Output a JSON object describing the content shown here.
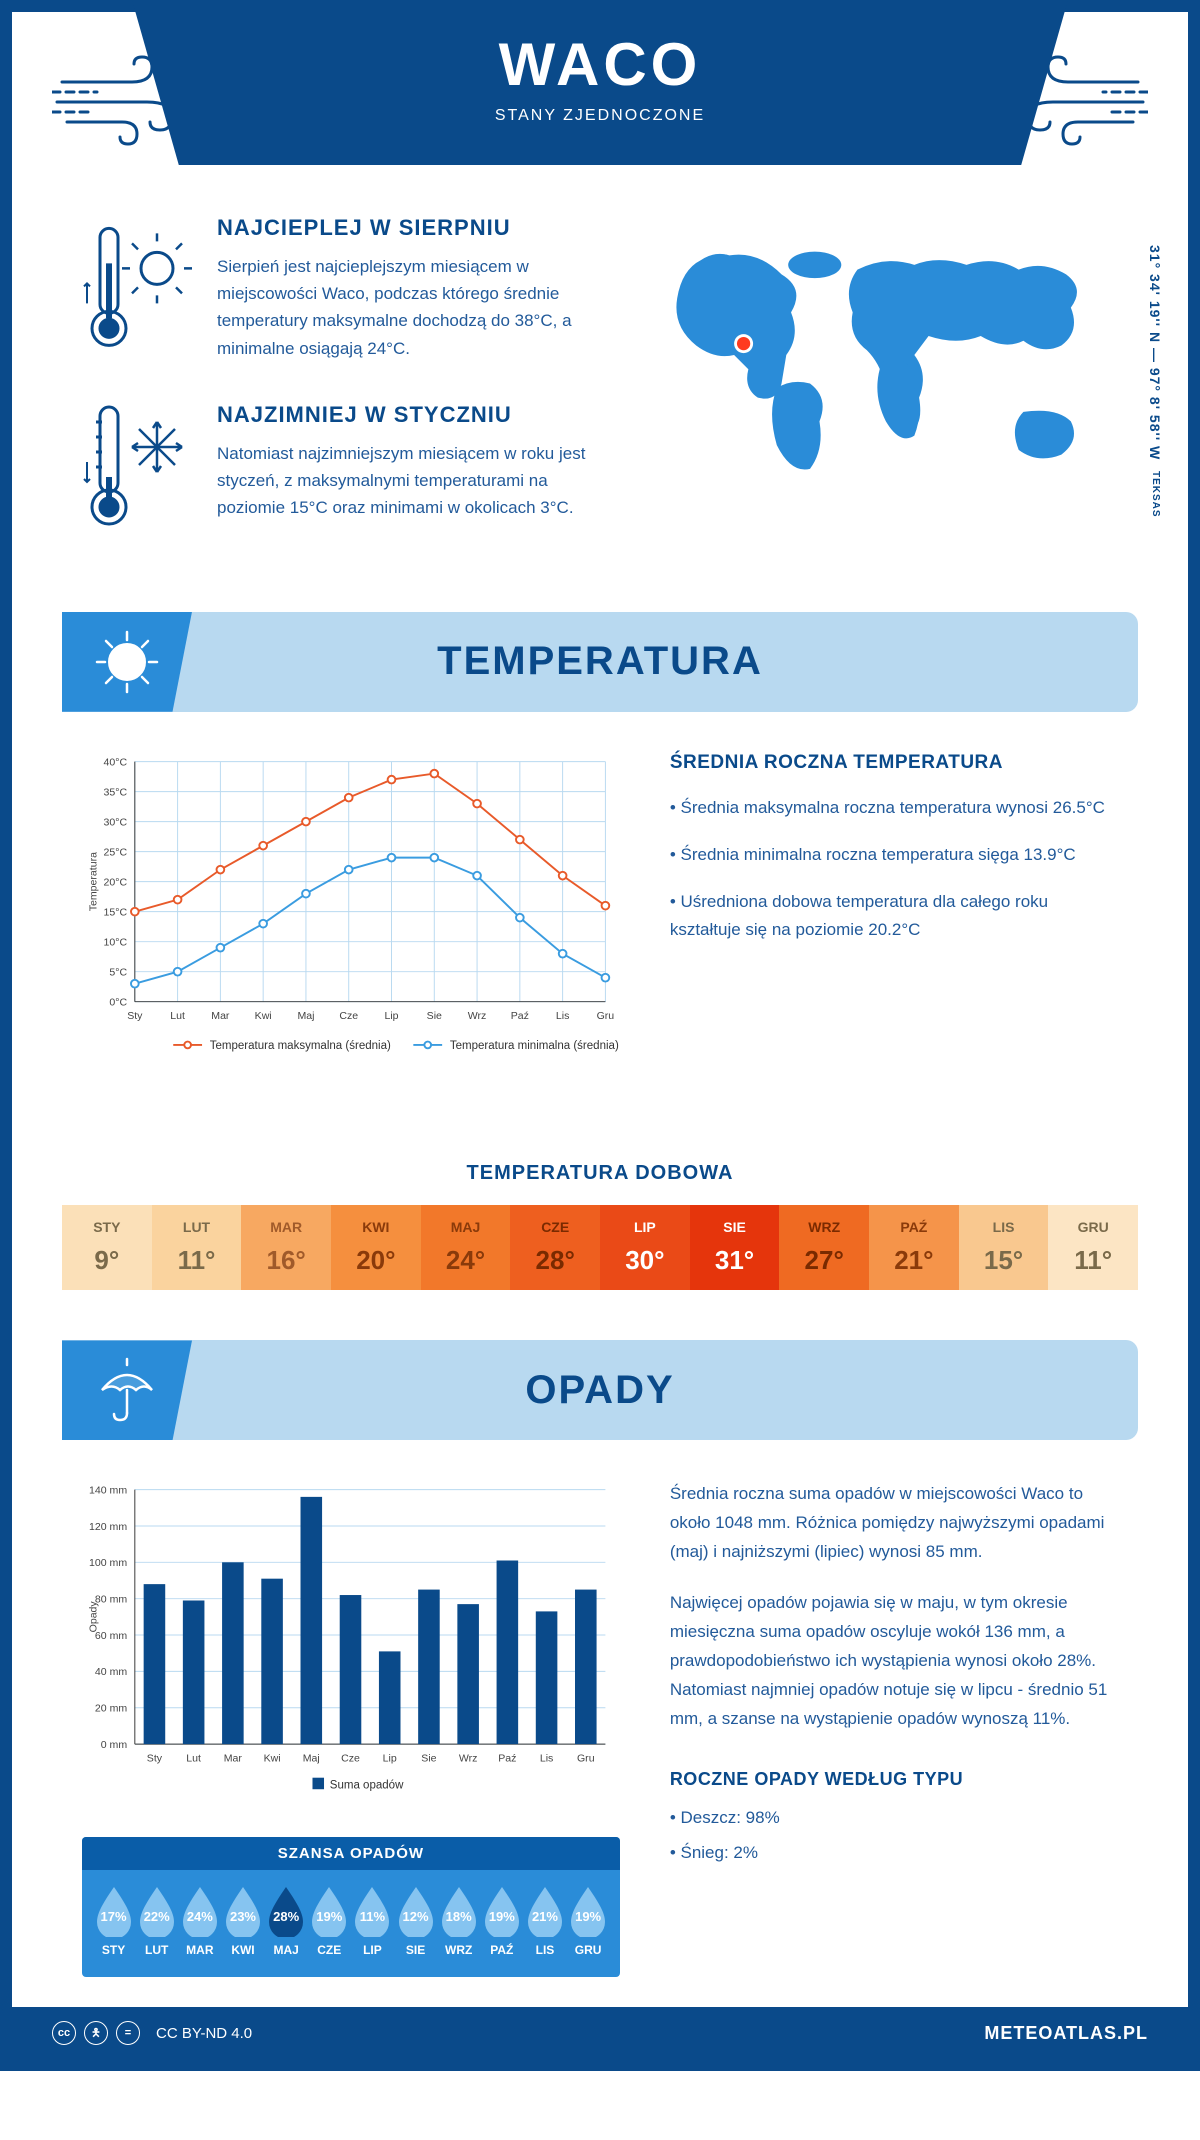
{
  "header": {
    "city": "WACO",
    "country": "STANY ZJEDNOCZONE"
  },
  "coords": {
    "main": "31° 34' 19'' N — 97° 8' 58'' W",
    "region": "TEKSAS"
  },
  "hottest": {
    "title": "NAJCIEPLEJ W SIERPNIU",
    "text": "Sierpień jest najcieplejszym miesiącem w miejscowości Waco, podczas którego średnie temperatury maksymalne dochodzą do 38°C, a minimalne osiągają 24°C."
  },
  "coldest": {
    "title": "NAJZIMNIEJ W STYCZNIU",
    "text": "Natomiast najzimniejszym miesiącem w roku jest styczeń, z maksymalnymi temperaturami na poziomie 15°C oraz minimami w okolicach 3°C."
  },
  "temp_section_title": "TEMPERATURA",
  "temp_chart": {
    "type": "line",
    "months": [
      "Sty",
      "Lut",
      "Mar",
      "Kwi",
      "Maj",
      "Cze",
      "Lip",
      "Sie",
      "Wrz",
      "Paź",
      "Lis",
      "Gru"
    ],
    "series_max": {
      "label": "Temperatura maksymalna (średnia)",
      "color": "#e85a2a",
      "values": [
        15,
        17,
        22,
        26,
        30,
        34,
        37,
        38,
        33,
        27,
        21,
        16
      ]
    },
    "series_min": {
      "label": "Temperatura minimalna (średnia)",
      "color": "#3a9ce0",
      "values": [
        3,
        5,
        9,
        13,
        18,
        22,
        24,
        24,
        21,
        14,
        8,
        4
      ]
    },
    "yaxis": {
      "label": "Temperatura",
      "min": 0,
      "max": 40,
      "step": 5,
      "suffix": "°C"
    },
    "grid_color": "#b8d9f0",
    "marker": "circle",
    "line_width": 2
  },
  "temp_info": {
    "title": "ŚREDNIA ROCZNA TEMPERATURA",
    "bullets": [
      "Średnia maksymalna roczna temperatura wynosi 26.5°C",
      "Średnia minimalna roczna temperatura sięga 13.9°C",
      "Uśredniona dobowa temperatura dla całego roku kształtuje się na poziomie 20.2°C"
    ]
  },
  "daily_temp": {
    "title": "TEMPERATURA DOBOWA",
    "months": [
      "STY",
      "LUT",
      "MAR",
      "KWI",
      "MAJ",
      "CZE",
      "LIP",
      "SIE",
      "WRZ",
      "PAŹ",
      "LIS",
      "GRU"
    ],
    "values": [
      "9°",
      "11°",
      "16°",
      "20°",
      "24°",
      "28°",
      "30°",
      "31°",
      "27°",
      "21°",
      "15°",
      "11°"
    ],
    "bg_colors": [
      "#fbe0b8",
      "#fad39e",
      "#f7a861",
      "#f58f3e",
      "#f2782a",
      "#ee5f1f",
      "#ea4a17",
      "#e5350c",
      "#ef6a22",
      "#f5944a",
      "#f9c88f",
      "#fce5c4"
    ],
    "text_colors": [
      "#7a6a4a",
      "#7a6a4a",
      "#a05a2a",
      "#8a3a0a",
      "#8a3a0a",
      "#7a2a00",
      "#ffffff",
      "#ffffff",
      "#7a2a00",
      "#8a3a0a",
      "#7a6a4a",
      "#7a6a4a"
    ]
  },
  "precip_section_title": "OPADY",
  "precip_chart": {
    "type": "bar",
    "months": [
      "Sty",
      "Lut",
      "Mar",
      "Kwi",
      "Maj",
      "Cze",
      "Lip",
      "Sie",
      "Wrz",
      "Paź",
      "Lis",
      "Gru"
    ],
    "values": [
      88,
      79,
      100,
      91,
      136,
      82,
      51,
      85,
      77,
      101,
      73,
      85
    ],
    "yaxis": {
      "label": "Opady",
      "min": 0,
      "max": 140,
      "step": 20,
      "suffix": " mm"
    },
    "bar_color": "#0a4a8a",
    "legend": "Suma opadów",
    "grid_color": "#b8d9f0"
  },
  "precip_text": {
    "p1": "Średnia roczna suma opadów w miejscowości Waco to około 1048 mm. Różnica pomiędzy najwyższymi opadami (maj) i najniższymi (lipiec) wynosi 85 mm.",
    "p2": "Najwięcej opadów pojawia się w maju, w tym okresie miesięczna suma opadów oscyluje wokół 136 mm, a prawdopodobieństwo ich wystąpienia wynosi około 28%. Natomiast najmniej opadów notuje się w lipcu - średnio 51 mm, a szanse na wystąpienie opadów wynoszą 11%.",
    "type_title": "ROCZNE OPADY WEDŁUG TYPU",
    "type_bullets": [
      "Deszcz: 98%",
      "Śnieg: 2%"
    ]
  },
  "chance": {
    "title": "SZANSA OPADÓW",
    "months": [
      "STY",
      "LUT",
      "MAR",
      "KWI",
      "MAJ",
      "CZE",
      "LIP",
      "SIE",
      "WRZ",
      "PAŹ",
      "LIS",
      "GRU"
    ],
    "values": [
      "17%",
      "22%",
      "24%",
      "23%",
      "28%",
      "19%",
      "11%",
      "12%",
      "18%",
      "19%",
      "21%",
      "19%"
    ],
    "highlight_index": 4,
    "drop_fill": "#86c4f0",
    "drop_highlight": "#0a4a8a"
  },
  "footer": {
    "license": "CC BY-ND 4.0",
    "site": "METEOATLAS.PL"
  }
}
